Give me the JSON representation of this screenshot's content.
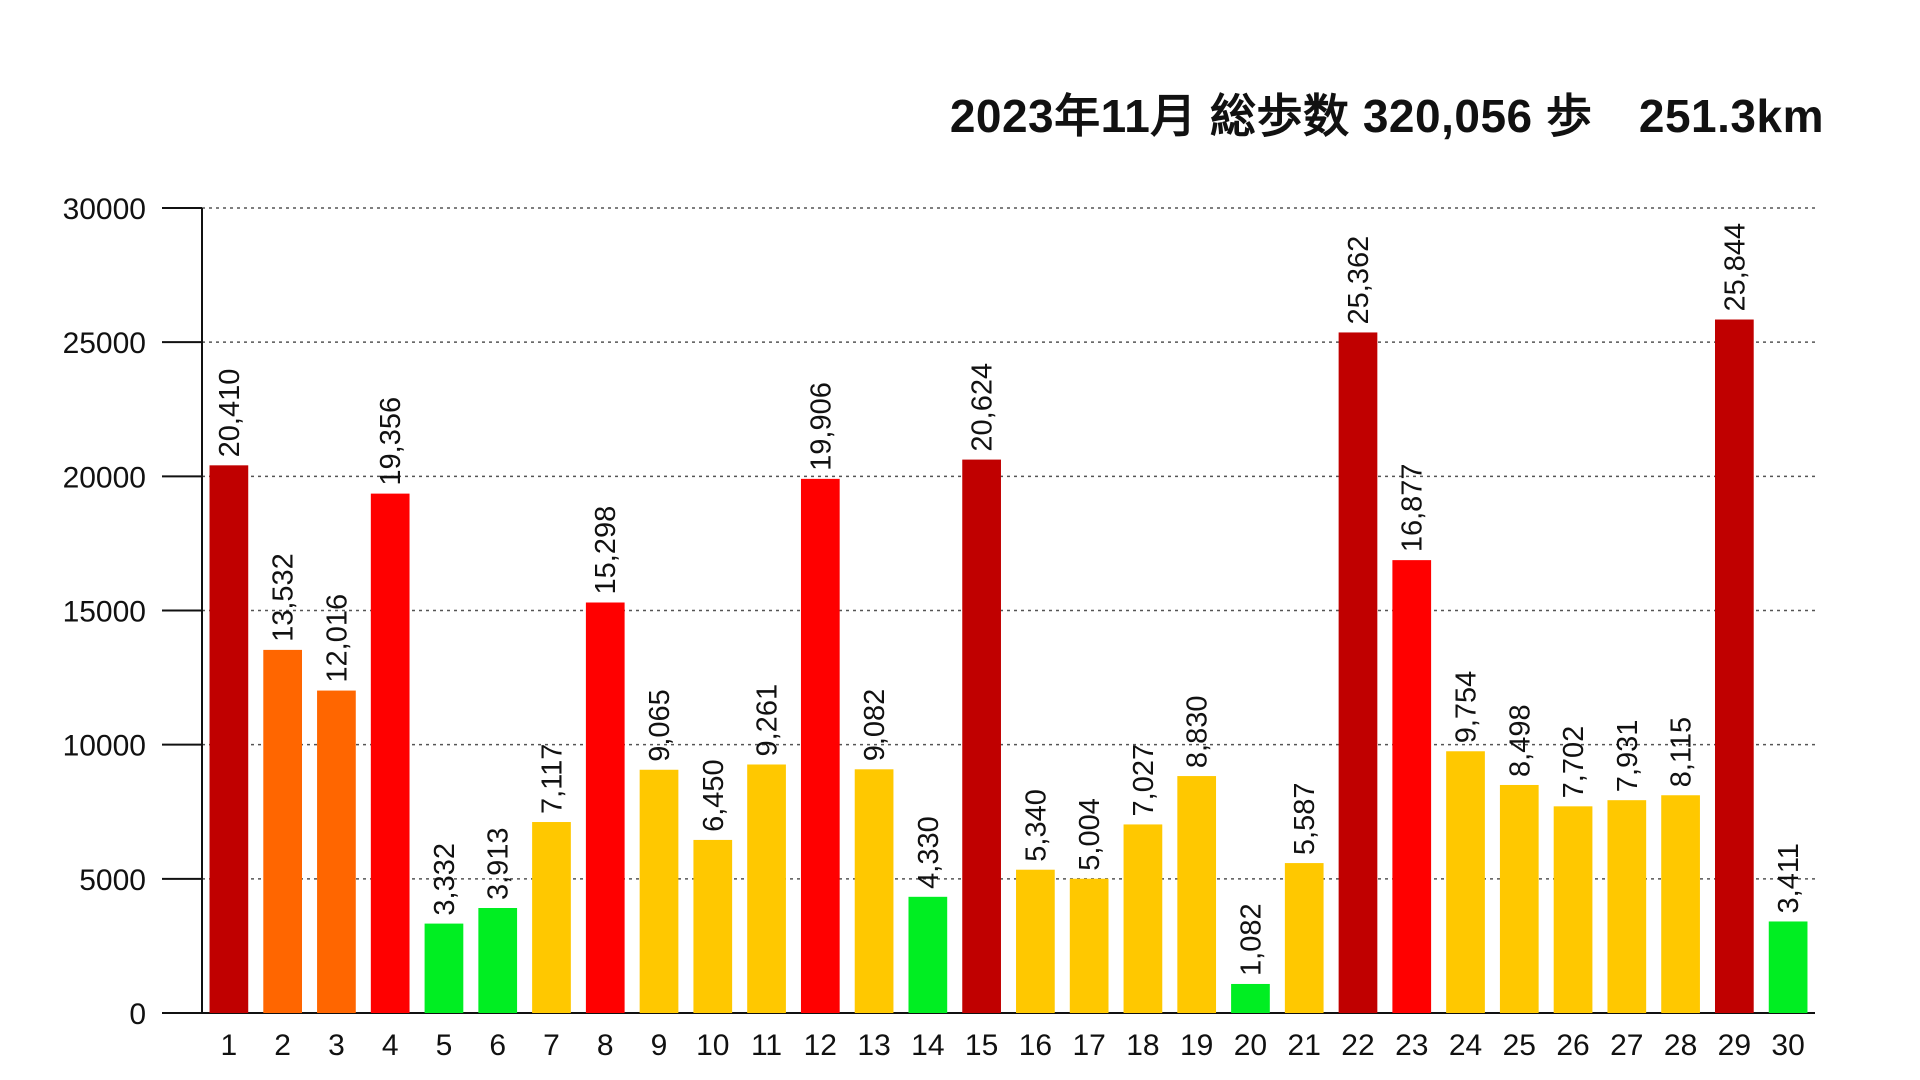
{
  "chart_data": {
    "type": "bar",
    "title": "2023年11月 総歩数 320,056 歩　251.3km",
    "xlabel": "",
    "ylabel": "",
    "ylim": [
      0,
      30000
    ],
    "yticks": [
      0,
      5000,
      10000,
      15000,
      20000,
      25000,
      30000
    ],
    "grid": "horizontal-dotted",
    "categories": [
      "1",
      "2",
      "3",
      "4",
      "5",
      "6",
      "7",
      "8",
      "9",
      "10",
      "11",
      "12",
      "13",
      "14",
      "15",
      "16",
      "17",
      "18",
      "19",
      "20",
      "21",
      "22",
      "23",
      "24",
      "25",
      "26",
      "27",
      "28",
      "29",
      "30"
    ],
    "values": [
      20410,
      13532,
      12016,
      19356,
      3332,
      3913,
      7117,
      15298,
      9065,
      6450,
      9261,
      19906,
      9082,
      4330,
      20624,
      5340,
      5004,
      7027,
      8830,
      1082,
      5587,
      25362,
      16877,
      9754,
      8498,
      7702,
      7931,
      8115,
      25844,
      3411
    ],
    "data_labels": [
      "20,410",
      "13,532",
      "12,016",
      "19,356",
      "3,332",
      "3,913",
      "7,117",
      "15,298",
      "9,065",
      "6,450",
      "9,261",
      "19,906",
      "9,082",
      "4,330",
      "20,624",
      "5,340",
      "5,004",
      "7,027",
      "8,830",
      "1,082",
      "5,587",
      "25,362",
      "16,877",
      "9,754",
      "8,498",
      "7,702",
      "7,931",
      "8,115",
      "25,844",
      "3,411"
    ],
    "bar_colors": [
      "#C00000",
      "#FF6600",
      "#FF6600",
      "#FF0000",
      "#00EE22",
      "#00EE22",
      "#FFC800",
      "#FF0000",
      "#FFC800",
      "#FFC800",
      "#FFC800",
      "#FF0000",
      "#FFC800",
      "#00EE22",
      "#C00000",
      "#FFC800",
      "#FFC800",
      "#FFC800",
      "#FFC800",
      "#00EE22",
      "#FFC800",
      "#C00000",
      "#FF0000",
      "#FFC800",
      "#FFC800",
      "#FFC800",
      "#FFC800",
      "#FFC800",
      "#C00000",
      "#00EE22"
    ]
  }
}
